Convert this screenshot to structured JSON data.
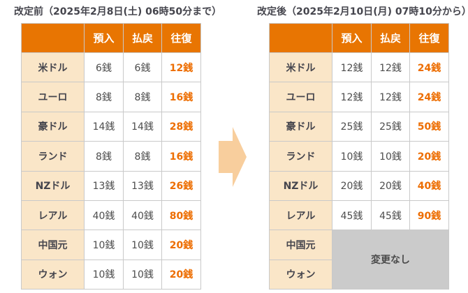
{
  "colors": {
    "header_bg": "#E87502",
    "label_bg": "#FAE6C8",
    "round_trip_text": "#ED6D00",
    "value_text": "#4D4D4D",
    "title_text": "#45454D",
    "no_change_bg": "#CBCBCB",
    "grid_border": "#C9C9C9",
    "arrow": "#F8CE9D"
  },
  "before": {
    "title": "改定前（2025年2月8日(土) 06時50分まで）",
    "columns": [
      "預入",
      "払戻",
      "往復"
    ],
    "rows": [
      {
        "label": "米ドル",
        "values": [
          "6銭",
          "6銭",
          "12銭"
        ]
      },
      {
        "label": "ユーロ",
        "values": [
          "8銭",
          "8銭",
          "16銭"
        ]
      },
      {
        "label": "豪ドル",
        "values": [
          "14銭",
          "14銭",
          "28銭"
        ]
      },
      {
        "label": "ランド",
        "values": [
          "8銭",
          "8銭",
          "16銭"
        ]
      },
      {
        "label": "NZドル",
        "values": [
          "13銭",
          "13銭",
          "26銭"
        ]
      },
      {
        "label": "レアル",
        "values": [
          "40銭",
          "40銭",
          "80銭"
        ]
      },
      {
        "label": "中国元",
        "values": [
          "10銭",
          "10銭",
          "20銭"
        ]
      },
      {
        "label": "ウォン",
        "values": [
          "10銭",
          "10銭",
          "20銭"
        ]
      }
    ]
  },
  "after": {
    "title": "改定後（2025年2月10日(月) 07時10分から）",
    "columns": [
      "預入",
      "払戻",
      "往復"
    ],
    "no_change_text": "変更なし",
    "rows": [
      {
        "label": "米ドル",
        "values": [
          "12銭",
          "12銭",
          "24銭"
        ]
      },
      {
        "label": "ユーロ",
        "values": [
          "12銭",
          "12銭",
          "24銭"
        ]
      },
      {
        "label": "豪ドル",
        "values": [
          "25銭",
          "25銭",
          "50銭"
        ]
      },
      {
        "label": "ランド",
        "values": [
          "10銭",
          "10銭",
          "20銭"
        ]
      },
      {
        "label": "NZドル",
        "values": [
          "20銭",
          "20銭",
          "40銭"
        ]
      },
      {
        "label": "レアル",
        "values": [
          "45銭",
          "45銭",
          "90銭"
        ]
      },
      {
        "label": "中国元",
        "no_change": true
      },
      {
        "label": "ウォン",
        "no_change": true
      }
    ]
  }
}
